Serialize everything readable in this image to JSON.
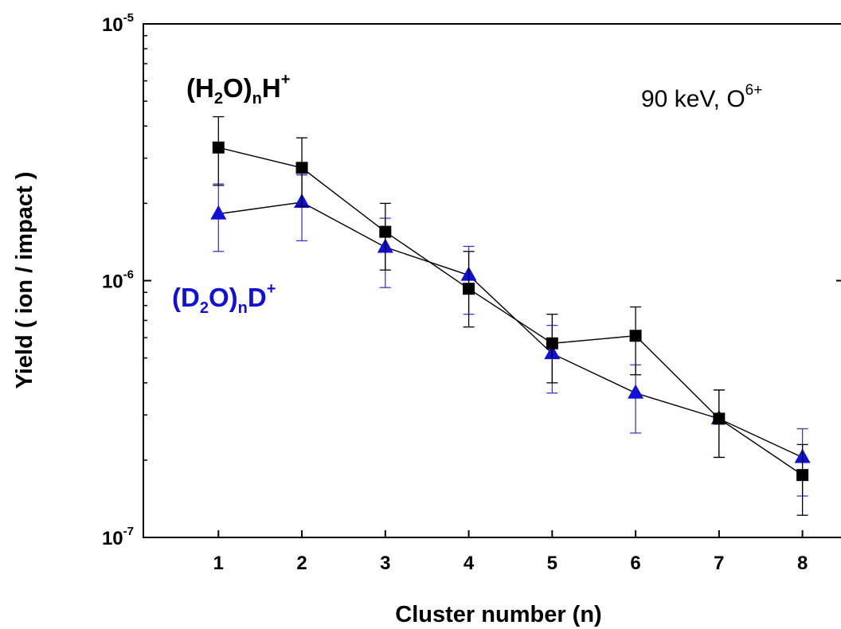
{
  "chart_data": {
    "type": "scatter",
    "xlabel": "Cluster number   (n)",
    "ylabel": "Yield   ( ion / impact )",
    "x": [
      1,
      2,
      3,
      4,
      5,
      6,
      7,
      8
    ],
    "xlim": [
      0.1,
      8.5
    ],
    "ylim": [
      1e-07,
      1e-05
    ],
    "yscale": "log",
    "x_tick_labels": [
      "1",
      "2",
      "3",
      "4",
      "5",
      "6",
      "7",
      "8"
    ],
    "y_tick_labels": [
      {
        "value": 1e-05,
        "base": "10",
        "exp": "-5"
      },
      {
        "value": 1e-06,
        "base": "10",
        "exp": "-6"
      },
      {
        "value": 1e-07,
        "base": "10",
        "exp": "-7"
      }
    ],
    "grid": false,
    "series": [
      {
        "name": "(H2O)nH+",
        "marker": "square",
        "color": "#000000",
        "values": [
          3.3e-06,
          2.75e-06,
          1.55e-06,
          9.3e-07,
          5.7e-07,
          6.1e-07,
          2.9e-07,
          1.75e-07
        ],
        "err_low": [
          2.35e-06,
          1.95e-06,
          1.1e-06,
          6.6e-07,
          4e-07,
          4.3e-07,
          2.05e-07,
          1.22e-07
        ],
        "err_high": [
          4.35e-06,
          3.6e-06,
          2e-06,
          1.3e-06,
          7.4e-07,
          7.9e-07,
          3.75e-07,
          2.3e-07
        ]
      },
      {
        "name": "(D2O)nD+",
        "marker": "triangle",
        "color": "#1010d8",
        "values": [
          1.82e-06,
          2.02e-06,
          1.35e-06,
          1.05e-06,
          5.2e-07,
          3.65e-07,
          2.9e-07,
          2.05e-07
        ],
        "err_low": [
          1.3e-06,
          1.43e-06,
          9.4e-07,
          7.4e-07,
          3.65e-07,
          2.55e-07,
          2.05e-07,
          1.45e-07
        ],
        "err_high": [
          2.38e-06,
          2.58e-06,
          1.75e-06,
          1.36e-06,
          6.7e-07,
          4.7e-07,
          3.75e-07,
          2.65e-07
        ]
      }
    ],
    "annotations": {
      "label_h": {
        "p1": "(H",
        "sub1": "2",
        "p2": "O)",
        "sub2": "n",
        "p3": "H",
        "sup": "+",
        "color": "#000000"
      },
      "label_d": {
        "p1": "(D",
        "sub1": "2",
        "p2": "O)",
        "sub2": "n",
        "p3": "D",
        "sup": "+",
        "color": "#1010d8"
      },
      "energy": {
        "text": "90 keV, O",
        "sup": "6+"
      }
    }
  }
}
